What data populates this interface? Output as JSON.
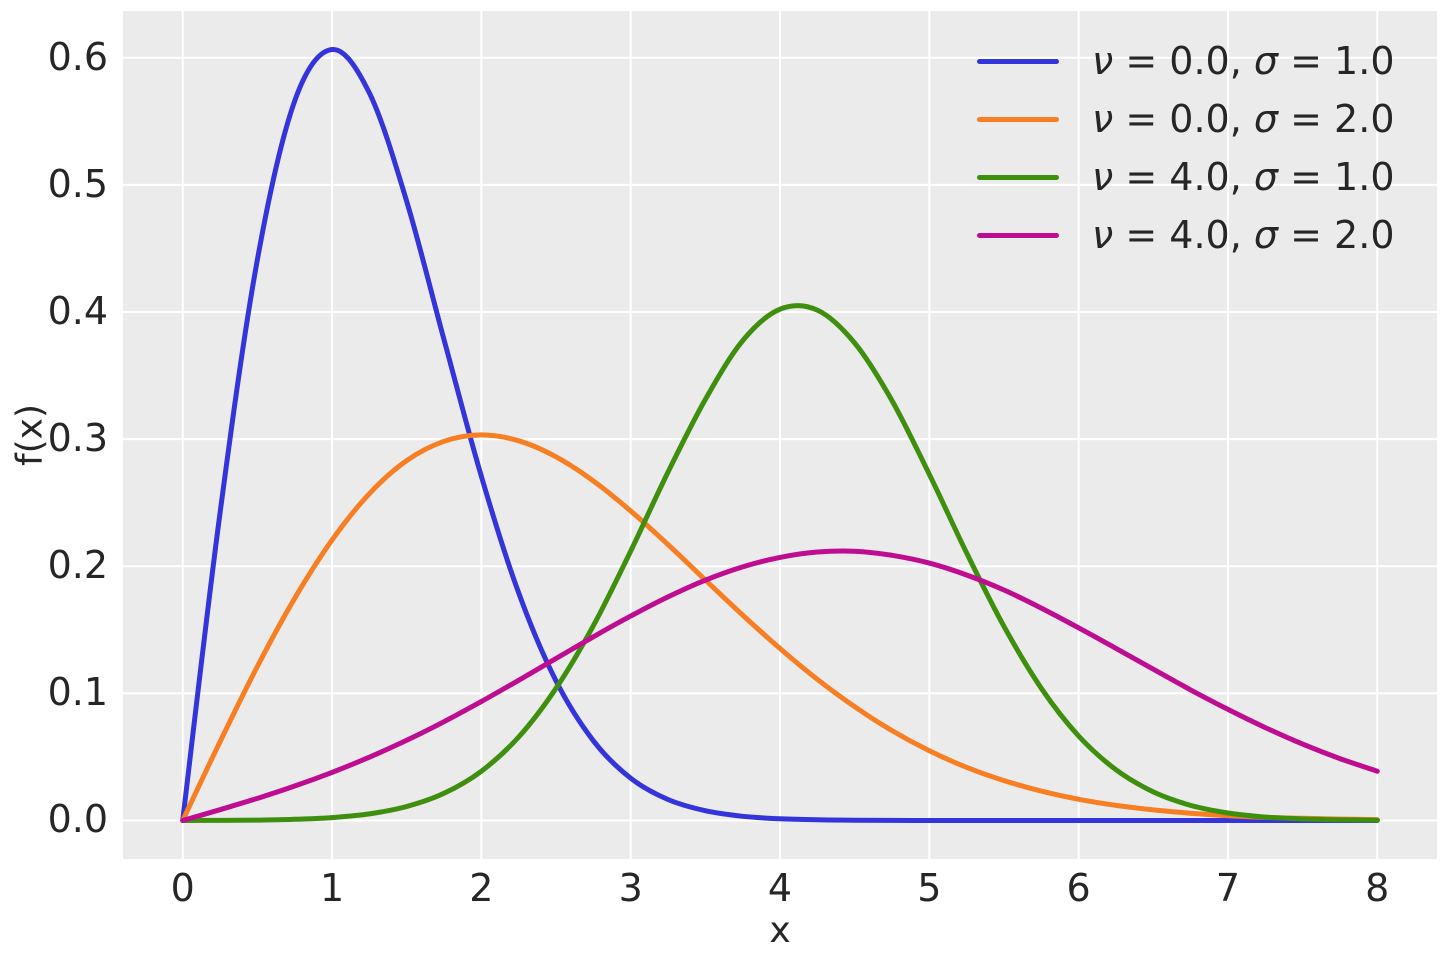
{
  "chart_data": {
    "type": "line",
    "xlabel": "x",
    "ylabel": "f(x)",
    "xlim": [
      -0.4,
      8.4
    ],
    "ylim": [
      -0.0303,
      0.6368
    ],
    "grid": true,
    "legend_location": "upper right",
    "legend_frame": false,
    "xticks": [
      0,
      1,
      2,
      3,
      4,
      5,
      6,
      7,
      8
    ],
    "xtick_labels": [
      "0",
      "1",
      "2",
      "3",
      "4",
      "5",
      "6",
      "7",
      "8"
    ],
    "yticks": [
      0.0,
      0.1,
      0.2,
      0.3,
      0.4,
      0.5,
      0.6
    ],
    "ytick_labels": [
      "0.0",
      "0.1",
      "0.2",
      "0.3",
      "0.4",
      "0.5",
      "0.6"
    ],
    "x": [
      0,
      0.25,
      0.5,
      0.75,
      1,
      1.25,
      1.5,
      1.75,
      2,
      2.25,
      2.5,
      2.75,
      3,
      3.25,
      3.5,
      3.75,
      4,
      4.25,
      4.5,
      4.75,
      5,
      5.25,
      5.5,
      5.75,
      6,
      6.25,
      6.5,
      6.75,
      7,
      7.25,
      7.5,
      7.75,
      8
    ],
    "series": [
      {
        "name": "ν = 0.0, σ = 1.0",
        "color": "#3434db",
        "values": [
          0,
          0.2423,
          0.4412,
          0.5661,
          0.6065,
          0.5723,
          0.487,
          0.3783,
          0.2707,
          0.179,
          0.1098,
          0.0627,
          0.0333,
          0.0165,
          0.0077,
          0.0033,
          0.0013,
          0.0005,
          0.0002,
          0.0001,
          0,
          0,
          0,
          0,
          0,
          0,
          0,
          0,
          0,
          0,
          0,
          0,
          0
        ]
      },
      {
        "name": "ν = 0.0, σ = 2.0",
        "color": "#f77e22",
        "values": [
          0,
          0.062,
          0.1212,
          0.1748,
          0.2206,
          0.2571,
          0.2831,
          0.2983,
          0.3033,
          0.2987,
          0.2861,
          0.2671,
          0.2435,
          0.217,
          0.1892,
          0.1616,
          0.1353,
          0.1111,
          0.0895,
          0.0707,
          0.0549,
          0.0418,
          0.0314,
          0.0231,
          0.0167,
          0.0119,
          0.0083,
          0.0057,
          0.0038,
          0.0025,
          0.0017,
          0.0011,
          0.0007
        ]
      },
      {
        "name": "ν = 4.0, σ = 1.0",
        "color": "#3f8f0e",
        "values": [
          0,
          0.0001,
          0.0003,
          0.0009,
          0.0023,
          0.0052,
          0.011,
          0.0214,
          0.0388,
          0.0657,
          0.104,
          0.1533,
          0.2119,
          0.2741,
          0.3312,
          0.3775,
          0.4022,
          0.4015,
          0.3756,
          0.3303,
          0.2723,
          0.2105,
          0.1527,
          0.104,
          0.0665,
          0.0399,
          0.0225,
          0.0119,
          0.0059,
          0.0027,
          0.0012,
          0.0005,
          0.0002
        ]
      },
      {
        "name": "ν = 4.0, σ = 2.0",
        "color": "#be0d90",
        "values": [
          0,
          0.0085,
          0.0174,
          0.0271,
          0.0378,
          0.0498,
          0.0631,
          0.0777,
          0.0936,
          0.1103,
          0.1274,
          0.1445,
          0.1608,
          0.1759,
          0.189,
          0.1995,
          0.207,
          0.2112,
          0.2118,
          0.2086,
          0.2025,
          0.1931,
          0.1813,
          0.1671,
          0.1516,
          0.1354,
          0.119,
          0.1027,
          0.0874,
          0.0731,
          0.0601,
          0.0487,
          0.0388
        ]
      }
    ],
    "styles": {
      "plot_background": "#ebebeb",
      "grid_color": "#ffffff",
      "text_color": "#262626"
    }
  }
}
